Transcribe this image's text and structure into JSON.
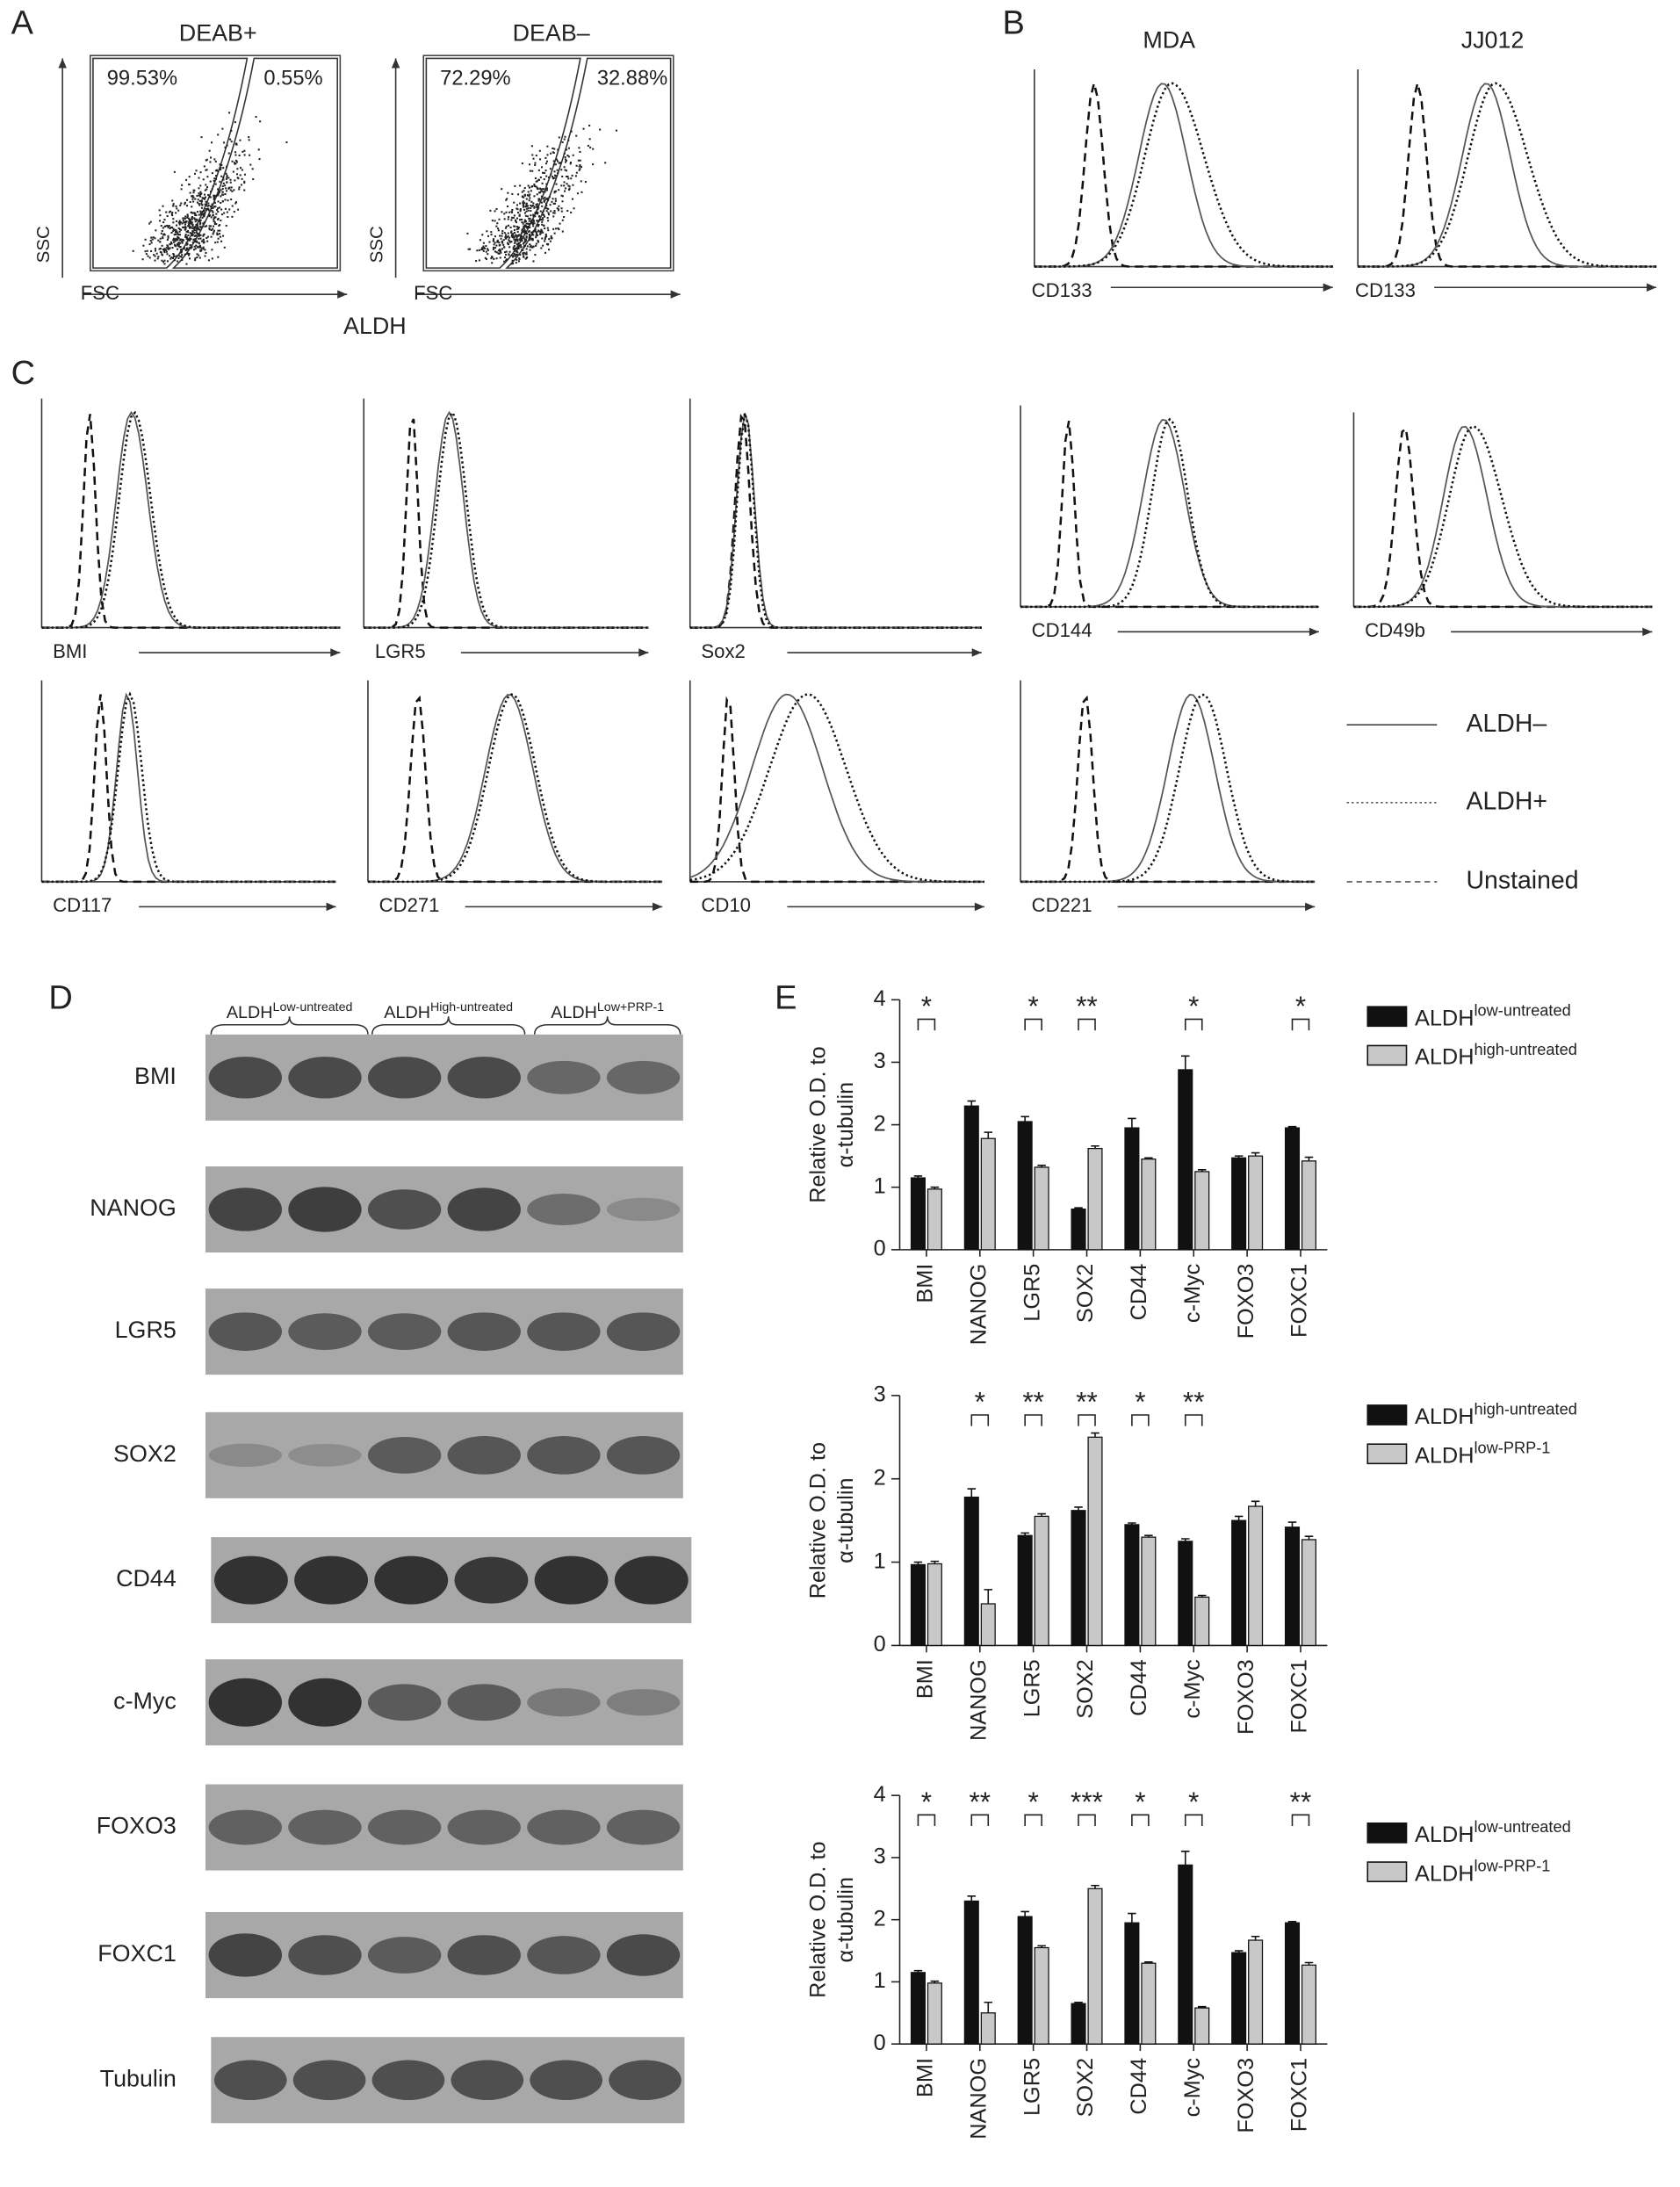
{
  "panel_a": {
    "label": "A",
    "conditions": [
      "DEAB+",
      "DEAB–"
    ],
    "gates": [
      [
        "99.53%",
        "0.55%"
      ],
      [
        "72.29%",
        "32.88%"
      ]
    ],
    "y_axis": "SSC",
    "x_axis": "FSC",
    "caption": "ALDH"
  },
  "panel_b": {
    "label": "B",
    "titles": [
      "MDA",
      "JJ012"
    ],
    "x_axis": "CD133"
  },
  "panel_c": {
    "label": "C",
    "markers": [
      "BMI",
      "LGR5",
      "Sox2",
      "CD144",
      "CD49b",
      "CD117",
      "CD271",
      "CD10",
      "CD221"
    ],
    "legend": [
      "ALDH–",
      "ALDH+",
      "Unstained"
    ]
  },
  "panel_d": {
    "label": "D",
    "groups": [
      {
        "base": "ALDH",
        "sup": "Low-untreated"
      },
      {
        "base": "ALDH",
        "sup": "High-untreated"
      },
      {
        "base": "ALDH",
        "sup": "Low+PRP-1"
      }
    ],
    "rows": [
      "BMI",
      "NANOG",
      "LGR5",
      "SOX2",
      "CD44",
      "c-Myc",
      "FOXO3",
      "FOXC1",
      "Tubulin"
    ]
  },
  "panel_e": {
    "label": "E"
  },
  "chart_data": [
    {
      "type": "bar",
      "ylabel": [
        "Relative O.D. to",
        "α-tubulin"
      ],
      "categories": [
        "BMI",
        "NANOG",
        "LGR5",
        "SOX2",
        "CD44",
        "c-Myc",
        "FOXO3",
        "FOXC1"
      ],
      "ylim": [
        0,
        4
      ],
      "yticks": [
        0,
        1,
        2,
        3,
        4
      ],
      "series": [
        {
          "name": "ALDH",
          "name_sup": "low-untreated",
          "color": "#111111",
          "values": [
            1.15,
            2.3,
            2.05,
            0.65,
            1.95,
            2.88,
            1.47,
            1.95
          ],
          "errors": [
            0.03,
            0.08,
            0.08,
            0.02,
            0.15,
            0.22,
            0.03,
            0.02
          ]
        },
        {
          "name": "ALDH",
          "name_sup": "high-untreated",
          "color": "#c8c8c8",
          "values": [
            0.97,
            1.78,
            1.32,
            1.62,
            1.45,
            1.25,
            1.5,
            1.42
          ],
          "errors": [
            0.03,
            0.1,
            0.03,
            0.04,
            0.02,
            0.03,
            0.05,
            0.06
          ]
        }
      ],
      "significance": [
        "*",
        null,
        "*",
        "**",
        null,
        "*",
        null,
        "*"
      ]
    },
    {
      "type": "bar",
      "ylabel": [
        "Relative O.D. to",
        "α-tubulin"
      ],
      "categories": [
        "BMI",
        "NANOG",
        "LGR5",
        "SOX2",
        "CD44",
        "c-Myc",
        "FOXO3",
        "FOXC1"
      ],
      "ylim": [
        0,
        3
      ],
      "yticks": [
        0,
        1,
        2,
        3
      ],
      "series": [
        {
          "name": "ALDH",
          "name_sup": "high-untreated",
          "color": "#111111",
          "values": [
            0.97,
            1.78,
            1.32,
            1.62,
            1.45,
            1.25,
            1.5,
            1.42
          ],
          "errors": [
            0.03,
            0.1,
            0.03,
            0.04,
            0.02,
            0.03,
            0.05,
            0.06
          ]
        },
        {
          "name": "ALDH",
          "name_sup": "low-PRP-1",
          "color": "#c8c8c8",
          "values": [
            0.98,
            0.5,
            1.55,
            2.5,
            1.3,
            0.58,
            1.67,
            1.27
          ],
          "errors": [
            0.03,
            0.17,
            0.03,
            0.05,
            0.02,
            0.02,
            0.06,
            0.04
          ]
        }
      ],
      "significance": [
        null,
        "*",
        "**",
        "**",
        "*",
        "**",
        null,
        null
      ]
    },
    {
      "type": "bar",
      "ylabel": [
        "Relative O.D. to",
        "α-tubulin"
      ],
      "categories": [
        "BMI",
        "NANOG",
        "LGR5",
        "SOX2",
        "CD44",
        "c-Myc",
        "FOXO3",
        "FOXC1"
      ],
      "ylim": [
        0,
        4
      ],
      "yticks": [
        0,
        1,
        2,
        3,
        4
      ],
      "series": [
        {
          "name": "ALDH",
          "name_sup": "low-untreated",
          "color": "#111111",
          "values": [
            1.15,
            2.3,
            2.05,
            0.65,
            1.95,
            2.88,
            1.47,
            1.95
          ],
          "errors": [
            0.03,
            0.08,
            0.08,
            0.02,
            0.15,
            0.22,
            0.03,
            0.02
          ]
        },
        {
          "name": "ALDH",
          "name_sup": "low-PRP-1",
          "color": "#c8c8c8",
          "values": [
            0.98,
            0.5,
            1.55,
            2.5,
            1.3,
            0.58,
            1.67,
            1.27
          ],
          "errors": [
            0.03,
            0.17,
            0.03,
            0.05,
            0.02,
            0.02,
            0.06,
            0.04
          ]
        }
      ],
      "significance": [
        "*",
        "**",
        "*",
        "***",
        "*",
        "*",
        null,
        "**"
      ]
    }
  ]
}
